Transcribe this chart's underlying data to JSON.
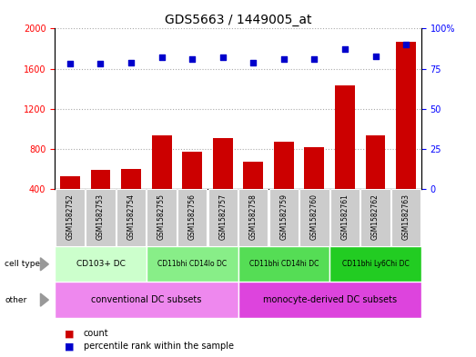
{
  "title": "GDS5663 / 1449005_at",
  "samples": [
    "GSM1582752",
    "GSM1582753",
    "GSM1582754",
    "GSM1582755",
    "GSM1582756",
    "GSM1582757",
    "GSM1582758",
    "GSM1582759",
    "GSM1582760",
    "GSM1582761",
    "GSM1582762",
    "GSM1582763"
  ],
  "counts": [
    530,
    590,
    600,
    940,
    775,
    910,
    670,
    870,
    820,
    1430,
    940,
    1870
  ],
  "percentiles": [
    78,
    78,
    79,
    82,
    81,
    82,
    79,
    81,
    81,
    87,
    83,
    90
  ],
  "ylim_left": [
    400,
    2000
  ],
  "ylim_right": [
    0,
    100
  ],
  "yticks_left": [
    400,
    800,
    1200,
    1600,
    2000
  ],
  "yticks_right": [
    0,
    25,
    50,
    75,
    100
  ],
  "bar_color": "#cc0000",
  "dot_color": "#0000cc",
  "cell_type_groups": [
    {
      "label": "CD103+ DC",
      "start": 0,
      "end": 2,
      "color": "#ccffcc"
    },
    {
      "label": "CD11bhi CD14lo DC",
      "start": 3,
      "end": 5,
      "color": "#88ee88"
    },
    {
      "label": "CD11bhi CD14hi DC",
      "start": 6,
      "end": 8,
      "color": "#55dd55"
    },
    {
      "label": "CD11bhi Ly6Chi DC",
      "start": 9,
      "end": 11,
      "color": "#22cc22"
    }
  ],
  "other_groups": [
    {
      "label": "conventional DC subsets",
      "start": 0,
      "end": 5,
      "color": "#ee88ee"
    },
    {
      "label": "monocyte-derived DC subsets",
      "start": 6,
      "end": 11,
      "color": "#dd44dd"
    }
  ],
  "bg_color": "#ffffff",
  "grid_color": "#aaaaaa",
  "sample_bg": "#cccccc",
  "label_fontsize": 7,
  "tick_fontsize": 7,
  "title_fontsize": 10
}
